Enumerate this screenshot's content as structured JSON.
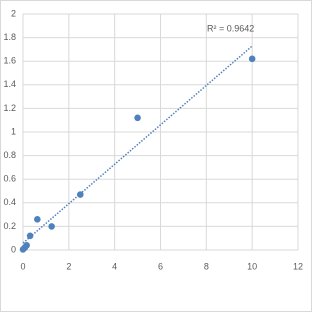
{
  "chart_data": {
    "type": "scatter",
    "x": [
      0,
      0.08,
      0.16,
      0.31,
      0.625,
      1.25,
      2.5,
      5,
      10
    ],
    "values": [
      0.005,
      0.02,
      0.04,
      0.12,
      0.26,
      0.2,
      0.47,
      1.12,
      1.62
    ],
    "color": "#4f81bd",
    "xlim": [
      0,
      12
    ],
    "xticks": [
      0,
      2,
      4,
      6,
      8,
      10,
      12
    ],
    "ylim": [
      0,
      2
    ],
    "yticks": [
      0,
      0.2,
      0.4,
      0.6,
      0.8,
      1,
      1.2,
      1.4,
      1.6,
      1.8,
      2
    ],
    "grid": true,
    "trendline": "linear",
    "annotation": "R² = 0.9642"
  }
}
